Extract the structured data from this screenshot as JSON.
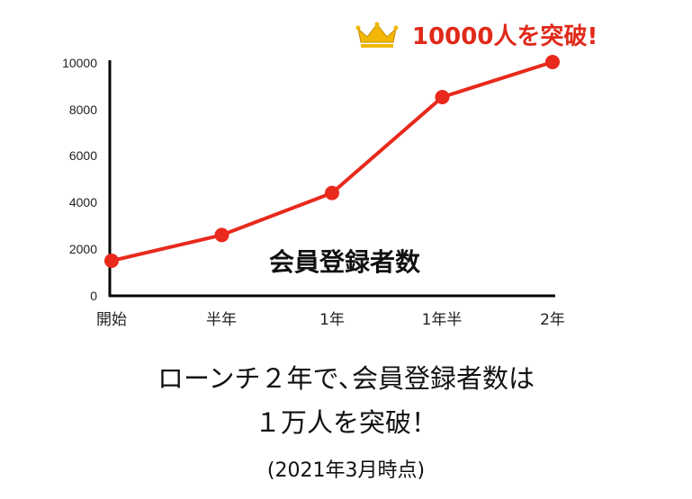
{
  "chart_data": {
    "type": "line",
    "title": "会員登録者数",
    "categories": [
      "開始",
      "半年",
      "1年",
      "1年半",
      "2年"
    ],
    "values": [
      1500,
      2600,
      4400,
      8500,
      10000
    ],
    "ylim": [
      0,
      10000
    ],
    "yticks": [
      "0",
      "2000",
      "4000",
      "6000",
      "8000",
      "10000"
    ],
    "grid": false,
    "color": "#e8291c",
    "annotation": "10000人を突破!",
    "annotation_icon": "crown-icon"
  },
  "caption": {
    "line1": "ローンチ２年で､会員登録者数は",
    "line2": "１万人を突破！",
    "line3": "(2021年3月時点)"
  }
}
